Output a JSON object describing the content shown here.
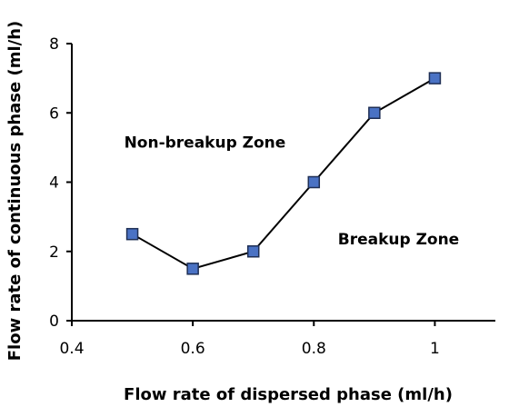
{
  "chart_data": {
    "type": "line",
    "title": "",
    "xlabel": "Flow rate of dispersed phase (ml/h)",
    "ylabel": "Flow rate of continuous phase (ml/h)",
    "xlim": [
      0.4,
      1.1
    ],
    "ylim": [
      0,
      8
    ],
    "x_ticks": [
      0.4,
      0.6,
      0.8,
      1.0
    ],
    "x_tick_labels": [
      "0.4",
      "0.6",
      "0.8",
      "1"
    ],
    "y_ticks": [
      0,
      2,
      4,
      6,
      8
    ],
    "y_tick_labels": [
      "0",
      "2",
      "4",
      "6",
      "8"
    ],
    "grid": false,
    "legend": "none",
    "series": [
      {
        "x": [
          0.5,
          0.6,
          0.7,
          0.8,
          0.9,
          1.0
        ],
        "y": [
          2.5,
          1.5,
          2.0,
          4.0,
          6.0,
          7.0
        ],
        "marker": "square",
        "marker_color": "#4a72c4",
        "line_color": "#000000"
      }
    ],
    "annotations": [
      {
        "text": "Non-breakup Zone",
        "x": 0.62,
        "y": 5.0
      },
      {
        "text": "Breakup Zone",
        "x": 0.94,
        "y": 2.2
      }
    ]
  }
}
